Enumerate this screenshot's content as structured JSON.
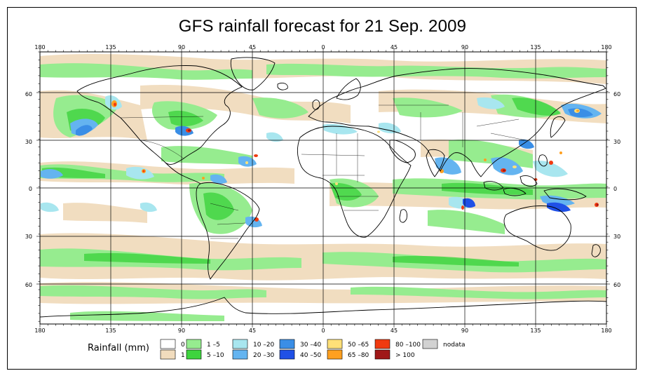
{
  "title": "GFS rainfall forecast for 21 Sep. 2009",
  "map": {
    "lon_labels": [
      "180",
      "135",
      "90",
      "45",
      "0",
      "45",
      "90",
      "135",
      "180"
    ],
    "lat_labels": [
      "60",
      "30",
      "0",
      "30",
      "60"
    ],
    "background": "#ffffff",
    "coastline_color": "#000000"
  },
  "legend": {
    "title": "Rainfall (mm)",
    "items": [
      {
        "label": "0",
        "color": "#ffffff"
      },
      {
        "label": "1",
        "color": "#f1dcbd"
      },
      {
        "label": "1 –5",
        "color": "#96ec8f"
      },
      {
        "label": "5 –10",
        "color": "#3ed43e"
      },
      {
        "label": "10 –20",
        "color": "#a8e6ef"
      },
      {
        "label": "20 –30",
        "color": "#64b4f0"
      },
      {
        "label": "30 –40",
        "color": "#3a8ee6"
      },
      {
        "label": "40 –50",
        "color": "#1f50e6"
      },
      {
        "label": "50 –65",
        "color": "#ffe078"
      },
      {
        "label": "65 –80",
        "color": "#ffa020"
      },
      {
        "label": "80 –100",
        "color": "#f03a10"
      },
      {
        "label": "> 100",
        "color": "#a01818"
      },
      {
        "label": "nodata",
        "color": "#d2d2d2"
      }
    ]
  }
}
